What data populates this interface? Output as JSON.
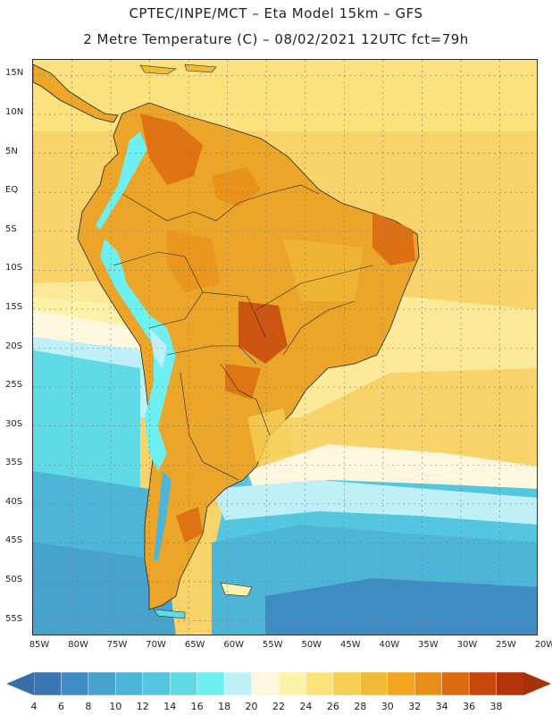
{
  "header": {
    "line1": "CPTEC/INPE/MCT –  Eta Model 15km – GFS",
    "line2": "2 Metre Temperature (C) – 08/02/2021 12UTC fct=79h"
  },
  "map": {
    "lat_labels": [
      "15N",
      "10N",
      "5N",
      "EQ",
      "5S",
      "10S",
      "15S",
      "20S",
      "25S",
      "30S",
      "35S",
      "40S",
      "45S",
      "50S",
      "55S"
    ],
    "lon_labels": [
      "85W",
      "80W",
      "75W",
      "70W",
      "65W",
      "60W",
      "55W",
      "50W",
      "45W",
      "40W",
      "35W",
      "30W",
      "25W",
      "20W"
    ],
    "lat_range": [
      17,
      -57
    ],
    "lon_range": [
      -85,
      -20
    ]
  },
  "colorbar": {
    "labels": [
      "4",
      "6",
      "8",
      "10",
      "12",
      "14",
      "16",
      "18",
      "20",
      "22",
      "24",
      "26",
      "28",
      "30",
      "32",
      "34",
      "36",
      "38"
    ],
    "colors": [
      "#3a76b4",
      "#3f8cc4",
      "#48a3cc",
      "#4db6d6",
      "#55c6df",
      "#60dbe6",
      "#6ef0f0",
      "#bff0f8",
      "#fdf7dd",
      "#fdf2a8",
      "#fbe27c",
      "#f5cf56",
      "#efbc37",
      "#f2a61f",
      "#e98e17",
      "#dc6a0f",
      "#c8460a",
      "#b3330a"
    ],
    "low_color": "#3a6eaa",
    "high_color": "#a8300a"
  }
}
